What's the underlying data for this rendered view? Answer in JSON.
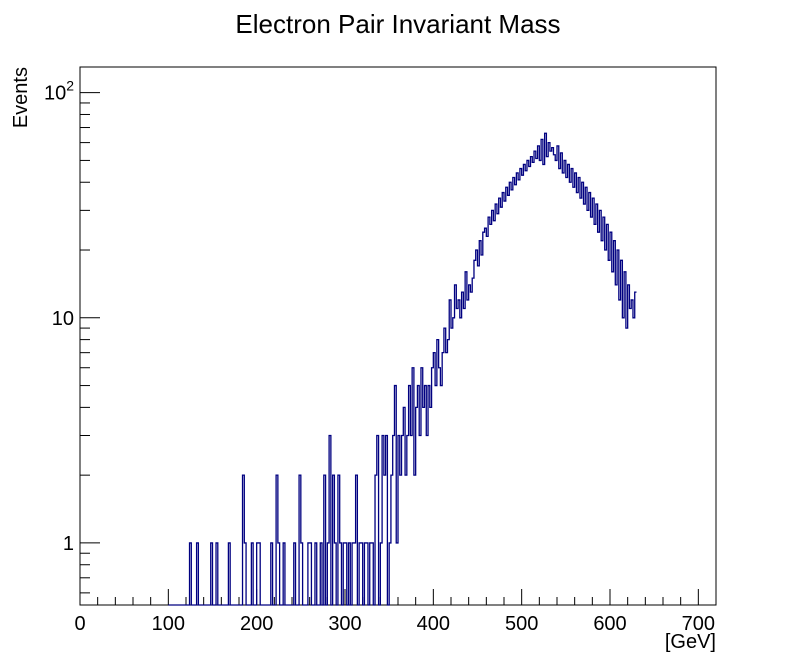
{
  "chart_data": {
    "type": "histogram",
    "title": "Electron Pair Invariant Mass",
    "xlabel": "[GeV]",
    "ylabel": "Events",
    "yscale": "log",
    "xlim": [
      0,
      720
    ],
    "ylim": [
      0.53,
      130
    ],
    "x_ticks": [
      0,
      100,
      200,
      300,
      400,
      500,
      600,
      700
    ],
    "x_tick_labels": [
      "0",
      "100",
      "200",
      "300",
      "400",
      "500",
      "600",
      "700"
    ],
    "y_tick_labels": [
      {
        "value": 1,
        "base": "1",
        "exp": ""
      },
      {
        "value": 10,
        "base": "10",
        "exp": ""
      },
      {
        "value": 100,
        "base": "10",
        "exp": "2"
      }
    ],
    "line_color": "#000080",
    "series": [
      {
        "name": "events",
        "bin_width": 2,
        "x_start": 100,
        "values": [
          0,
          0,
          0,
          0,
          0,
          0,
          0,
          0,
          0,
          0,
          0,
          0,
          1,
          0,
          0,
          0,
          1,
          0,
          0,
          0,
          0,
          0,
          0,
          0,
          1,
          0,
          0,
          1,
          0,
          0,
          0,
          0,
          0,
          0,
          1,
          0,
          0,
          0,
          0,
          0,
          0,
          0,
          2,
          1,
          0,
          0,
          0,
          1,
          0,
          0,
          1,
          1,
          0,
          0,
          0,
          0,
          0,
          0,
          1,
          0,
          0,
          2,
          1,
          0,
          0,
          1,
          0,
          0,
          0,
          0,
          0,
          1,
          0,
          0,
          2,
          1,
          0,
          0,
          0,
          1,
          1,
          0,
          0,
          1,
          0,
          0,
          1,
          0,
          2,
          0,
          1,
          3,
          0,
          2,
          1,
          0,
          2,
          1,
          0,
          1,
          1,
          0,
          1,
          0,
          1,
          1,
          2,
          0,
          1,
          1,
          0,
          1,
          1,
          0,
          1,
          1,
          0,
          2,
          3,
          0,
          1,
          3,
          2,
          3,
          0,
          1,
          2,
          3,
          5,
          1,
          3,
          2,
          3,
          4,
          2,
          3,
          5,
          3,
          6,
          2,
          4,
          5,
          3,
          6,
          4,
          5,
          3,
          5,
          4,
          6,
          7,
          5,
          8,
          6,
          5,
          7,
          9,
          7,
          8,
          12,
          9,
          10,
          14,
          11,
          12,
          10,
          13,
          11,
          16,
          12,
          14,
          13,
          15,
          18,
          20,
          17,
          22,
          19,
          24,
          25,
          23,
          28,
          26,
          30,
          27,
          32,
          29,
          34,
          31,
          36,
          33,
          38,
          35,
          40,
          37,
          42,
          39,
          44,
          41,
          46,
          43,
          48,
          45,
          50,
          47,
          52,
          49,
          55,
          51,
          58,
          50,
          62,
          48,
          66,
          52,
          60,
          55,
          57,
          53,
          50,
          58,
          46,
          54,
          44,
          50,
          42,
          48,
          40,
          46,
          38,
          44,
          36,
          42,
          34,
          40,
          32,
          38,
          30,
          36,
          28,
          34,
          26,
          32,
          24,
          30,
          22,
          28,
          20,
          26,
          18,
          24,
          16,
          22,
          14,
          20,
          12,
          18,
          10,
          16,
          9,
          14,
          11,
          12,
          10,
          13
        ]
      }
    ]
  }
}
